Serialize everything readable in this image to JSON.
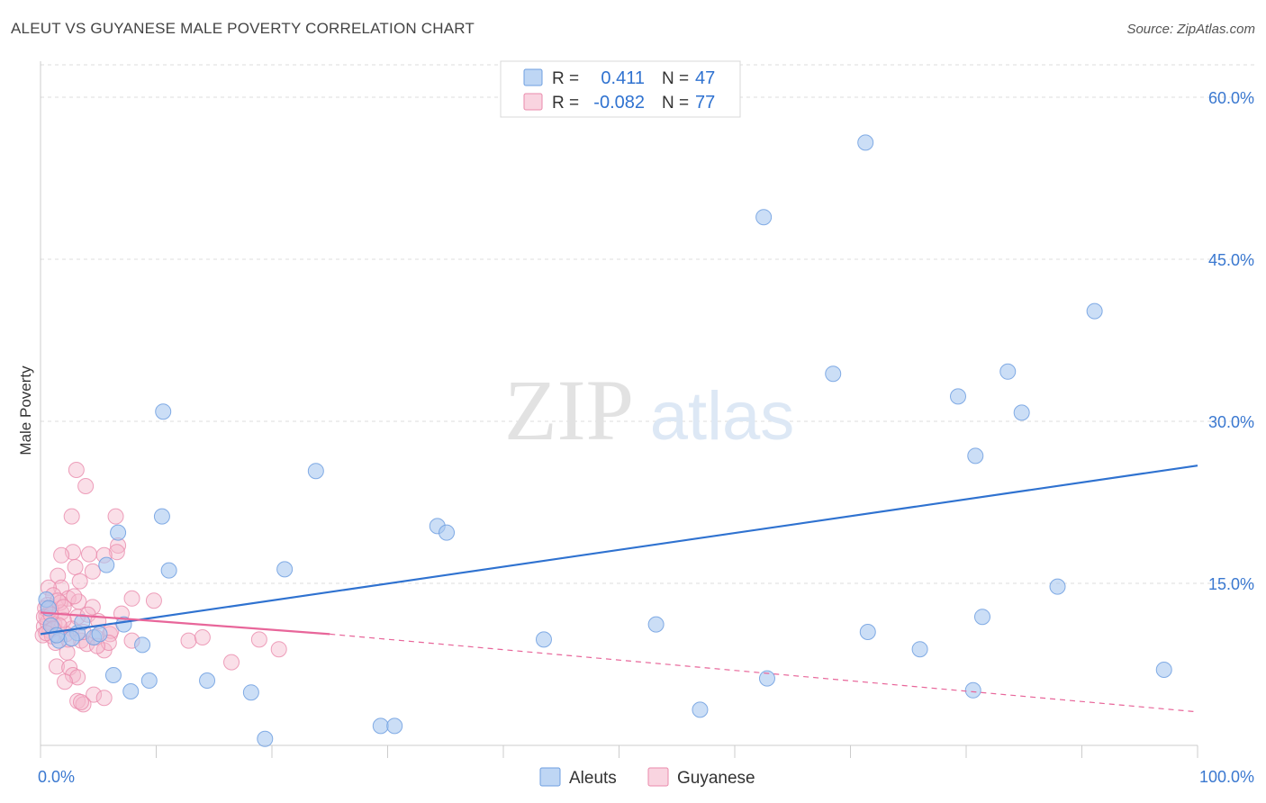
{
  "title": "ALEUT VS GUYANESE MALE POVERTY CORRELATION CHART",
  "source": "Source: ZipAtlas.com",
  "watermark": {
    "zip": "ZIP",
    "atlas": "atlas"
  },
  "colors": {
    "aleut": "#a8c8f0",
    "aleut_stroke": "#6f9fe0",
    "aleut_line": "#2f72d0",
    "guyanese": "#f5b8cc",
    "guyanese_stroke": "#ea8aab",
    "guyanese_line": "#e8669a",
    "axis_label": "#3a78d0"
  },
  "legend_box": {
    "rows": [
      {
        "r_label": "R =",
        "r_value": "0.411",
        "n_label": "N =",
        "n_value": "47"
      },
      {
        "r_label": "R =",
        "r_value": "-0.082",
        "n_label": "N =",
        "n_value": "77"
      }
    ]
  },
  "bottom_legend": [
    "Aleuts",
    "Guyanese"
  ],
  "chart_data": {
    "type": "scatter",
    "xlabel": "",
    "ylabel": "Male Poverty",
    "xlim": [
      0,
      100
    ],
    "ylim": [
      0,
      63
    ],
    "x_tick_labels": [
      "0.0%",
      "100.0%"
    ],
    "y_ticks": [
      15,
      30,
      45,
      60
    ],
    "y_tick_labels": [
      "15.0%",
      "30.0%",
      "45.0%",
      "60.0%"
    ],
    "grid": true,
    "series": [
      {
        "name": "Aleuts",
        "points": [
          [
            71.3,
            55.8
          ],
          [
            62.5,
            48.9
          ],
          [
            91.1,
            40.2
          ],
          [
            68.5,
            34.4
          ],
          [
            83.6,
            34.6
          ],
          [
            79.3,
            32.3
          ],
          [
            84.8,
            30.8
          ],
          [
            10.6,
            30.9
          ],
          [
            80.8,
            26.8
          ],
          [
            23.8,
            25.4
          ],
          [
            34.3,
            20.3
          ],
          [
            35.1,
            19.7
          ],
          [
            6.7,
            19.7
          ],
          [
            10.5,
            21.2
          ],
          [
            5.7,
            16.7
          ],
          [
            11.1,
            16.2
          ],
          [
            21.1,
            16.3
          ],
          [
            87.9,
            14.7
          ],
          [
            81.4,
            11.9
          ],
          [
            53.2,
            11.2
          ],
          [
            71.5,
            10.5
          ],
          [
            43.5,
            9.8
          ],
          [
            76.0,
            8.9
          ],
          [
            97.1,
            7.0
          ],
          [
            7.2,
            11.2
          ],
          [
            3.2,
            10.4
          ],
          [
            1.6,
            9.7
          ],
          [
            2.7,
            9.9
          ],
          [
            4.6,
            10.0
          ],
          [
            8.8,
            9.3
          ],
          [
            6.3,
            6.5
          ],
          [
            9.4,
            6.0
          ],
          [
            14.4,
            6.0
          ],
          [
            7.8,
            5.0
          ],
          [
            18.2,
            4.9
          ],
          [
            62.8,
            6.2
          ],
          [
            80.6,
            5.1
          ],
          [
            57.0,
            3.3
          ],
          [
            29.4,
            1.8
          ],
          [
            30.6,
            1.8
          ],
          [
            19.4,
            0.6
          ],
          [
            0.5,
            13.5
          ],
          [
            3.6,
            11.4
          ],
          [
            0.9,
            11.1
          ],
          [
            1.4,
            10.2
          ],
          [
            0.7,
            12.7
          ],
          [
            5.1,
            10.3
          ]
        ]
      },
      {
        "name": "Guyanese",
        "points": [
          [
            3.1,
            25.5
          ],
          [
            3.9,
            24.0
          ],
          [
            6.5,
            21.2
          ],
          [
            2.7,
            21.2
          ],
          [
            6.7,
            18.5
          ],
          [
            6.6,
            17.9
          ],
          [
            4.2,
            17.7
          ],
          [
            2.8,
            17.9
          ],
          [
            1.8,
            17.6
          ],
          [
            5.5,
            17.6
          ],
          [
            3.0,
            16.5
          ],
          [
            4.5,
            16.1
          ],
          [
            1.5,
            15.7
          ],
          [
            3.4,
            15.2
          ],
          [
            1.8,
            14.6
          ],
          [
            0.7,
            14.6
          ],
          [
            1.1,
            13.9
          ],
          [
            2.4,
            13.6
          ],
          [
            7.9,
            13.6
          ],
          [
            9.8,
            13.4
          ],
          [
            3.3,
            13.3
          ],
          [
            1.7,
            13.2
          ],
          [
            0.6,
            13.0
          ],
          [
            4.5,
            12.8
          ],
          [
            1.8,
            12.3
          ],
          [
            0.5,
            12.0
          ],
          [
            3.2,
            11.9
          ],
          [
            7.0,
            12.2
          ],
          [
            4.1,
            12.1
          ],
          [
            1.2,
            11.2
          ],
          [
            0.3,
            11.0
          ],
          [
            5.0,
            11.5
          ],
          [
            2.7,
            10.8
          ],
          [
            0.8,
            10.6
          ],
          [
            2.2,
            10.3
          ],
          [
            6.0,
            10.3
          ],
          [
            4.8,
            10.0
          ],
          [
            3.5,
            9.7
          ],
          [
            1.3,
            9.5
          ],
          [
            7.9,
            9.7
          ],
          [
            12.8,
            9.7
          ],
          [
            14.0,
            10.0
          ],
          [
            18.9,
            9.8
          ],
          [
            20.6,
            8.9
          ],
          [
            0.2,
            10.2
          ],
          [
            4.0,
            9.4
          ],
          [
            5.5,
            8.8
          ],
          [
            2.3,
            8.6
          ],
          [
            1.4,
            7.3
          ],
          [
            2.5,
            7.2
          ],
          [
            16.5,
            7.7
          ],
          [
            2.8,
            6.5
          ],
          [
            3.2,
            6.3
          ],
          [
            2.1,
            5.9
          ],
          [
            4.6,
            4.7
          ],
          [
            3.2,
            4.1
          ],
          [
            5.5,
            4.4
          ],
          [
            3.7,
            3.8
          ],
          [
            3.5,
            4.0
          ],
          [
            0.9,
            12.6
          ],
          [
            2.0,
            11.6
          ],
          [
            1.0,
            10.1
          ],
          [
            6.1,
            10.6
          ],
          [
            0.4,
            12.7
          ],
          [
            1.6,
            11.1
          ],
          [
            2.9,
            13.8
          ],
          [
            0.6,
            11.4
          ],
          [
            5.9,
            9.5
          ],
          [
            1.5,
            13.4
          ],
          [
            3.7,
            10.5
          ],
          [
            0.3,
            11.9
          ],
          [
            4.9,
            9.2
          ],
          [
            0.9,
            12.1
          ],
          [
            2.4,
            9.8
          ],
          [
            1.1,
            10.8
          ],
          [
            0.5,
            10.4
          ],
          [
            2.0,
            12.8
          ]
        ]
      }
    ],
    "trendlines": [
      {
        "series": "Aleuts",
        "x": [
          0,
          100
        ],
        "y": [
          10.3,
          25.9
        ],
        "style": "solid"
      },
      {
        "series": "Guyanese",
        "x": [
          0,
          25
        ],
        "y": [
          12.3,
          10.3
        ],
        "style": "solid"
      },
      {
        "series": "Guyanese",
        "x": [
          25,
          100
        ],
        "y": [
          10.3,
          3.1
        ],
        "style": "dashed"
      }
    ]
  }
}
